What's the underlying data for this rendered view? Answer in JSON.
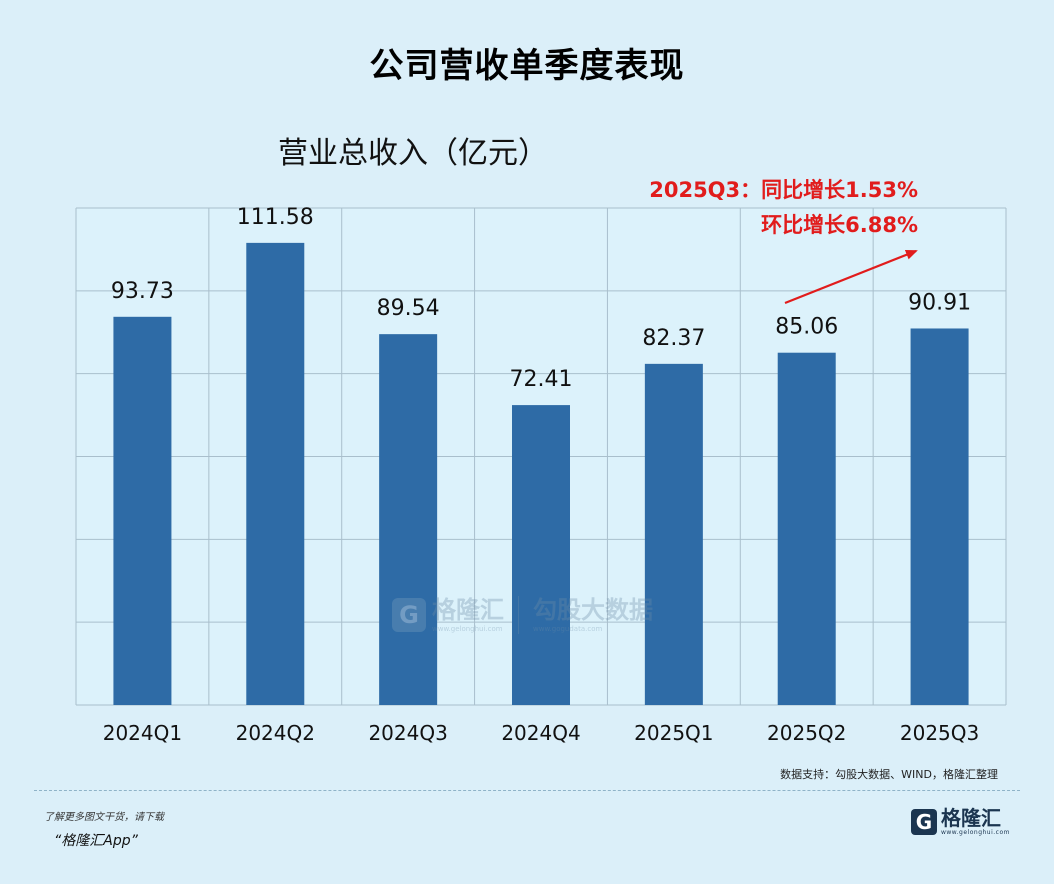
{
  "page": {
    "title": "公司营收单季度表现",
    "source_note": "数据支持：勾股大数据、WIND，格隆汇整理",
    "footer_promo": "了解更多图文干货，请下载",
    "footer_app": "“格隆汇App”",
    "logo_name": "格隆汇",
    "logo_url": "www.gelonghui.com",
    "watermark_left": "格隆汇",
    "watermark_left_url": "www.gelonghui.com",
    "watermark_right": "勾股大数据",
    "watermark_right_url": "www.gogudata.com"
  },
  "chart_data": {
    "type": "bar",
    "title": "营业总收入（亿元）",
    "categories": [
      "2024Q1",
      "2024Q2",
      "2024Q3",
      "2024Q4",
      "2025Q1",
      "2025Q2",
      "2025Q3"
    ],
    "series": [
      {
        "values": [
          93.73,
          111.58,
          89.54,
          72.41,
          82.37,
          85.06,
          90.91
        ],
        "labels": [
          "93.73",
          "111.58",
          "89.54",
          "72.41",
          "82.37",
          "85.06",
          "90.91"
        ]
      }
    ],
    "ylim": [
      0,
      120
    ],
    "grid": true,
    "bar_color": "#2e6ba6",
    "annotation": {
      "line1": "2025Q3：同比增长1.53%",
      "line2": "环比增长6.88%",
      "color": "#e11c1c"
    }
  }
}
